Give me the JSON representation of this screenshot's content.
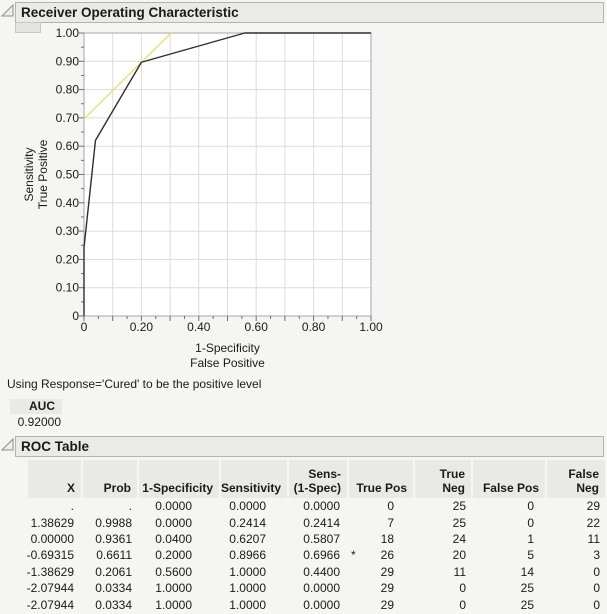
{
  "colors": {
    "page_bg": "#f5f5f3",
    "titlebar_bg": "#eaeae8",
    "titlebar_border": "#b3b3b1",
    "table_header_bg": "#e9e9e7",
    "grid": "#dcdcdc",
    "plot_border": "#a6a6a6",
    "roc_line": "#2e2e2e",
    "tangent_line": "#e6df78",
    "text": "#1a1a1a"
  },
  "roc_section": {
    "title": "Receiver Operating Characteristic"
  },
  "positive_level_note": "Using Response='Cured' to be the positive level",
  "auc": {
    "label": "AUC",
    "value": "0.92000"
  },
  "roc_table_section": {
    "title": "ROC Table",
    "columns": [
      "X",
      "Prob",
      "1-Specificity",
      "Sensitivity",
      "Sens-\n(1-Spec)",
      "True Pos",
      "True Neg",
      "False Pos",
      "False Neg"
    ],
    "optimal_flag": "*",
    "rows": [
      [
        ".",
        ".",
        "0.0000",
        "0.0000",
        "0.0000",
        "",
        "0",
        "25",
        "0",
        "29"
      ],
      [
        "1.38629",
        "0.9988",
        "0.0000",
        "0.2414",
        "0.2414",
        "",
        "7",
        "25",
        "0",
        "22"
      ],
      [
        "0.00000",
        "0.9361",
        "0.0400",
        "0.6207",
        "0.5807",
        "",
        "18",
        "24",
        "1",
        "11"
      ],
      [
        "-0.69315",
        "0.6611",
        "0.2000",
        "0.8966",
        "0.6966",
        "*",
        "26",
        "20",
        "5",
        "3"
      ],
      [
        "-1.38629",
        "0.2061",
        "0.5600",
        "1.0000",
        "0.4400",
        "",
        "29",
        "11",
        "14",
        "0"
      ],
      [
        "-2.07944",
        "0.0334",
        "1.0000",
        "1.0000",
        "0.0000",
        "",
        "29",
        "0",
        "25",
        "0"
      ],
      [
        "-2.07944",
        "0.0334",
        "1.0000",
        "1.0000",
        "0.0000",
        "",
        "29",
        "0",
        "25",
        "0"
      ]
    ]
  },
  "chart_data": {
    "type": "line",
    "title": "Receiver Operating Characteristic",
    "xlabel": [
      "1-Specificity",
      "False Positive"
    ],
    "ylabel": [
      "Sensitivity",
      "True Positive"
    ],
    "xlim": [
      0,
      1
    ],
    "ylim": [
      0,
      1
    ],
    "grid": true,
    "grid_step": 0.1,
    "minor_tick_step": 0.05,
    "x_ticks": [
      {
        "v": 0,
        "t": "0"
      },
      {
        "v": 0.2,
        "t": "0.20"
      },
      {
        "v": 0.4,
        "t": "0.40"
      },
      {
        "v": 0.6,
        "t": "0.60"
      },
      {
        "v": 0.8,
        "t": "0.80"
      },
      {
        "v": 1,
        "t": "1.00"
      }
    ],
    "y_ticks": [
      {
        "v": 0,
        "t": "0"
      },
      {
        "v": 0.1,
        "t": "0.10"
      },
      {
        "v": 0.2,
        "t": "0.20"
      },
      {
        "v": 0.3,
        "t": "0.30"
      },
      {
        "v": 0.4,
        "t": "0.40"
      },
      {
        "v": 0.5,
        "t": "0.50"
      },
      {
        "v": 0.6,
        "t": "0.60"
      },
      {
        "v": 0.7,
        "t": "0.70"
      },
      {
        "v": 0.8,
        "t": "0.80"
      },
      {
        "v": 0.9,
        "t": "0.90"
      },
      {
        "v": 1,
        "t": "1.00"
      }
    ],
    "series": [
      {
        "name": "tangent line at optimal cutoff",
        "color": "#e6df78",
        "points": [
          [
            0,
            0.6966
          ],
          [
            0.3034,
            1
          ]
        ]
      },
      {
        "name": "ROC curve",
        "color": "#2e2e2e",
        "points": [
          [
            0,
            0
          ],
          [
            0,
            0.2414
          ],
          [
            0.04,
            0.6207
          ],
          [
            0.2,
            0.8966
          ],
          [
            0.56,
            1
          ],
          [
            1,
            1
          ]
        ]
      }
    ]
  }
}
